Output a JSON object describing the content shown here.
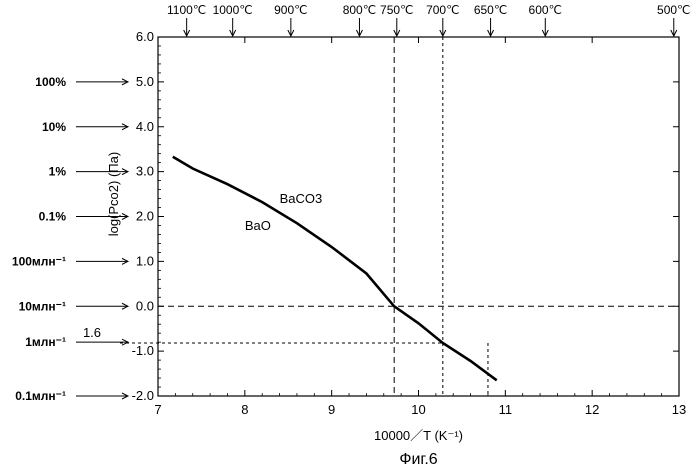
{
  "figure_caption": "Фиг.6",
  "chart_data": {
    "type": "line",
    "xlabel": "10000／T (K⁻¹)",
    "ylabel": "log(Pco2) (Па)",
    "xlim": [
      7,
      13
    ],
    "ylim": [
      -2.0,
      6.0
    ],
    "x_ticks": [
      7,
      8,
      9,
      10,
      11,
      12,
      13
    ],
    "y_ticks": [
      -2.0,
      -1.0,
      0.0,
      1.0,
      2.0,
      3.0,
      4.0,
      5.0,
      6.0
    ],
    "x_tick_labels": [
      "7",
      "8",
      "9",
      "10",
      "11",
      "12",
      "13"
    ],
    "y_tick_labels": [
      "-2.0",
      "-1.0",
      "0.0",
      "1.0",
      "2.0",
      "3.0",
      "4.0",
      "5.0",
      "6.0"
    ],
    "series": [
      {
        "points": [
          [
            7.17,
            3.33
          ],
          [
            7.4,
            3.07
          ],
          [
            7.8,
            2.72
          ],
          [
            8.2,
            2.32
          ],
          [
            8.6,
            1.85
          ],
          [
            9.0,
            1.32
          ],
          [
            9.4,
            0.73
          ],
          [
            9.72,
            0.0
          ],
          [
            10.0,
            -0.38
          ],
          [
            10.28,
            -0.82
          ],
          [
            10.6,
            -1.22
          ],
          [
            10.9,
            -1.65
          ]
        ]
      }
    ],
    "phase_labels": [
      {
        "text": "BaCO3",
        "x": 8.4,
        "y": 2.3
      },
      {
        "text": "BaO",
        "x": 8.0,
        "y": 1.7
      }
    ],
    "reference_lines": {
      "horizontal": [
        0.0,
        -0.82
      ],
      "vertical": [
        9.72,
        10.28,
        10.8
      ]
    },
    "top_axis": {
      "labels": [
        "1100℃",
        "1000℃",
        "900℃",
        "800℃",
        "750℃",
        "700℃",
        "650℃",
        "600℃",
        "500℃"
      ],
      "positions": [
        7.33,
        7.86,
        8.53,
        9.32,
        9.75,
        10.28,
        10.83,
        11.46,
        12.94
      ]
    },
    "left_axis": {
      "labels": [
        "100%",
        "10%",
        "1%",
        "0.1%",
        "100млн⁻¹",
        "10млн⁻¹",
        "1млн⁻¹",
        "0.1млн⁻¹"
      ],
      "levels": [
        5.0,
        4.0,
        3.0,
        2.0,
        1.0,
        0.0,
        -0.8,
        -2.0
      ],
      "extra_label": "1.6"
    }
  }
}
